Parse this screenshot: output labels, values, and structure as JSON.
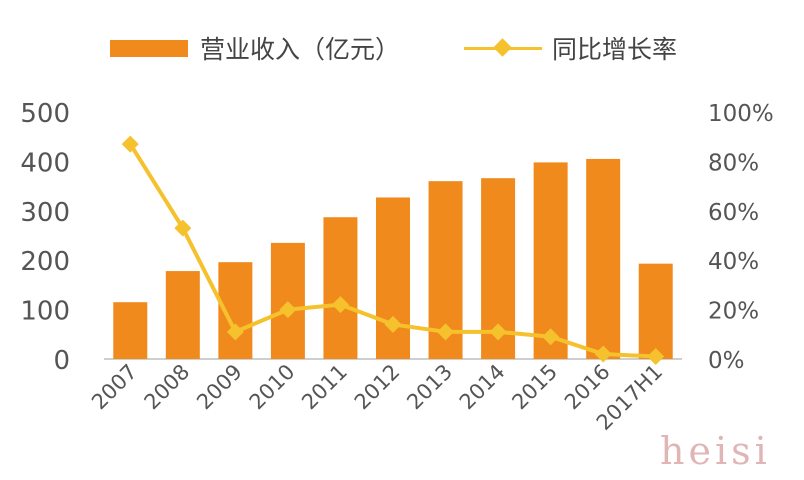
{
  "legend": {
    "bar_label": "营业收入（亿元）",
    "line_label": "同比增长率"
  },
  "watermark": "heisi",
  "colors": {
    "bar": "#F08A1D",
    "line": "#F5C12C",
    "axis": "#BFBFBF",
    "text": "#555555"
  },
  "chart_data": {
    "type": "bar",
    "categories": [
      "2007",
      "2008",
      "2009",
      "2010",
      "2011",
      "2012",
      "2013",
      "2014",
      "2015",
      "2016",
      "2017H1"
    ],
    "series": [
      {
        "name": "营业收入（亿元）",
        "type": "bar",
        "axis": "left",
        "values": [
          115,
          178,
          196,
          235,
          287,
          327,
          360,
          366,
          398,
          405,
          193
        ]
      },
      {
        "name": "同比增长率",
        "type": "line",
        "axis": "right",
        "values": [
          87,
          53,
          11,
          20,
          22,
          14,
          11,
          11,
          9,
          2,
          1
        ]
      }
    ],
    "ylim_left": [
      0,
      500
    ],
    "yticks_left": [
      "0",
      "100",
      "200",
      "300",
      "400",
      "500"
    ],
    "ylim_right": [
      0,
      100
    ],
    "yticks_right": [
      "0%",
      "20%",
      "40%",
      "60%",
      "80%",
      "100%"
    ],
    "legend_position": "top",
    "grid": false,
    "title": "",
    "xlabel": "",
    "ylabel": ""
  }
}
